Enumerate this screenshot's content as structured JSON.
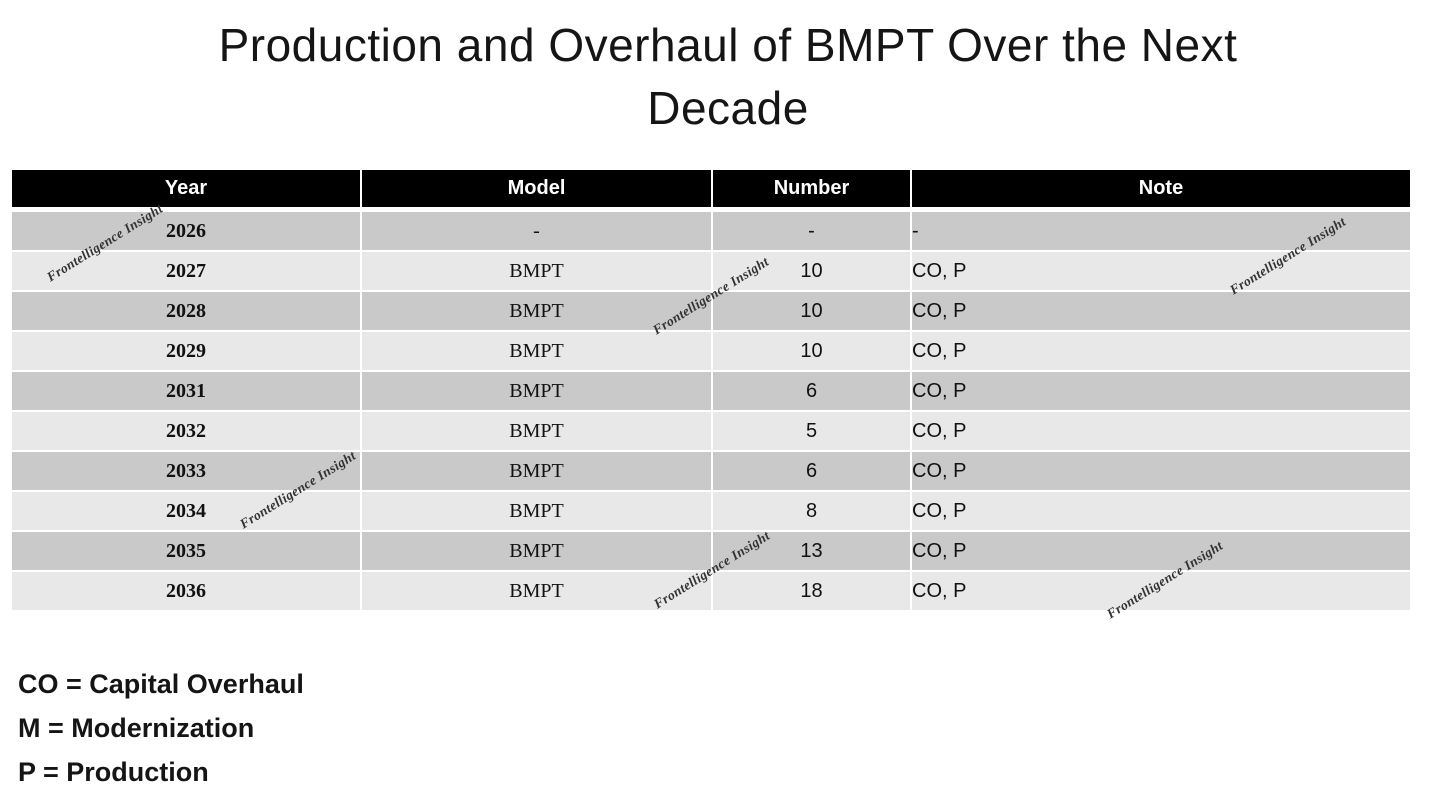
{
  "title": {
    "full": "Production and Overhaul of BMPT Over the Next Decade",
    "line1": "Production and Overhaul of BMPT Over the Next",
    "line2": "Decade"
  },
  "table": {
    "columns": {
      "year": "Year",
      "model": "Model",
      "number": "Number",
      "note": "Note"
    },
    "rows": [
      {
        "year": "2026",
        "model": "-",
        "number": "-",
        "note": "-"
      },
      {
        "year": "2027",
        "model": "BMPT",
        "number": "10",
        "note": "CO, P"
      },
      {
        "year": "2028",
        "model": "BMPT",
        "number": "10",
        "note": "CO, P"
      },
      {
        "year": "2029",
        "model": "BMPT",
        "number": "10",
        "note": "CO, P"
      },
      {
        "year": "2031",
        "model": "BMPT",
        "number": "6",
        "note": "CO, P"
      },
      {
        "year": "2032",
        "model": "BMPT",
        "number": "5",
        "note": "CO, P"
      },
      {
        "year": "2033",
        "model": "BMPT",
        "number": "6",
        "note": "CO, P"
      },
      {
        "year": "2034",
        "model": "BMPT",
        "number": "8",
        "note": "CO, P"
      },
      {
        "year": "2035",
        "model": "BMPT",
        "number": "13",
        "note": "CO, P"
      },
      {
        "year": "2036",
        "model": "BMPT",
        "number": "18",
        "note": "CO, P"
      }
    ]
  },
  "legend": {
    "items": [
      "CO = Capital Overhaul",
      "M = Modernization",
      "P = Production"
    ]
  },
  "watermark": {
    "text": "Frontelligence Insight"
  },
  "colors": {
    "header_bg": "#000000",
    "header_text": "#ffffff",
    "row_dark": "#c9c9c9",
    "row_light": "#e8e8e8",
    "watermark": "#333333"
  }
}
